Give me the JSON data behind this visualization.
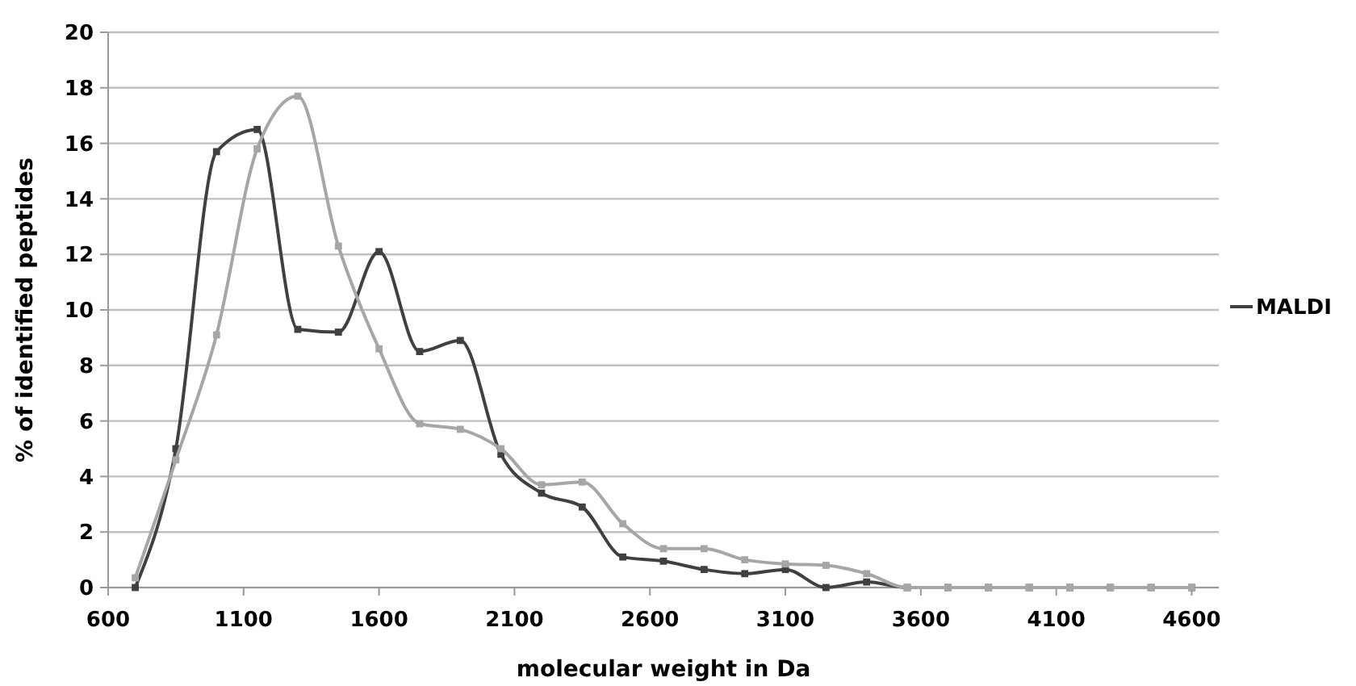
{
  "chart_data": {
    "type": "line",
    "xlabel": "molecular weight in Da",
    "ylabel": "% of identified peptides",
    "x": [
      700,
      850,
      1000,
      1150,
      1300,
      1450,
      1600,
      1750,
      1900,
      2050,
      2200,
      2350,
      2500,
      2650,
      2800,
      2950,
      3100,
      3250,
      3400,
      3550,
      3700,
      3850,
      4000,
      4150,
      4300,
      4450,
      4600
    ],
    "series": [
      {
        "name": "MALDI",
        "color": "#404040",
        "values": [
          0,
          5.0,
          15.7,
          16.5,
          9.3,
          9.2,
          12.1,
          8.5,
          8.9,
          4.8,
          3.4,
          2.9,
          1.1,
          0.95,
          0.65,
          0.5,
          0.65,
          0,
          0.2,
          0,
          0,
          0,
          0,
          0,
          0,
          0,
          0
        ]
      },
      {
        "color": "#a6a6a6",
        "values": [
          0.35,
          4.6,
          9.1,
          15.8,
          17.7,
          12.3,
          8.6,
          5.9,
          5.7,
          5.0,
          3.7,
          3.8,
          2.3,
          1.4,
          1.4,
          1.0,
          0.85,
          0.8,
          0.5,
          0,
          0,
          0,
          0,
          0,
          0,
          0,
          0
        ]
      }
    ],
    "xlim": [
      600,
      4700
    ],
    "xticks": [
      600,
      1100,
      1600,
      2100,
      2600,
      3100,
      3600,
      4100,
      4600
    ],
    "ylim": [
      0,
      20
    ],
    "yticks": [
      0,
      2,
      4,
      6,
      8,
      10,
      12,
      14,
      16,
      18,
      20
    ],
    "grid": "y",
    "legend": "right",
    "marker": "square",
    "line_style": "solid"
  }
}
